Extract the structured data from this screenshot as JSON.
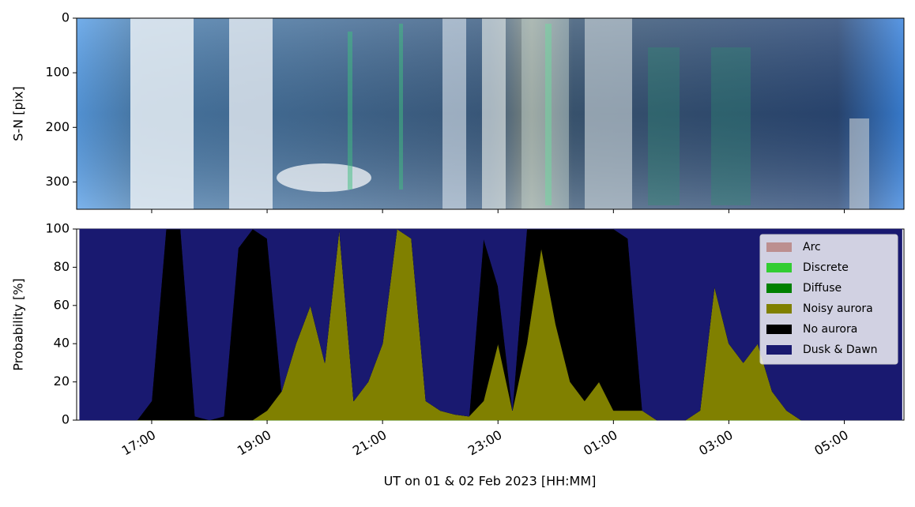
{
  "chart_data": [
    {
      "type": "image",
      "ylabel": "S-N [pix]",
      "ylim": [
        350,
        0
      ],
      "yticks": [
        0,
        100,
        200,
        300
      ]
    },
    {
      "type": "stacked_area",
      "xlabel": "UT on 01 & 02 Feb 2023 [HH:MM]",
      "ylabel": "Probability [%]",
      "xlim": [
        "2023-02-01T15:42",
        "2023-02-02T06:02"
      ],
      "xticks": [
        {
          "value": "2023-02-01T17:00",
          "label": "17:00"
        },
        {
          "value": "2023-02-01T19:00",
          "label": "19:00"
        },
        {
          "value": "2023-02-01T21:00",
          "label": "21:00"
        },
        {
          "value": "2023-02-01T23:00",
          "label": "23:00"
        },
        {
          "value": "2023-02-02T01:00",
          "label": "01:00"
        },
        {
          "value": "2023-02-02T03:00",
          "label": "03:00"
        },
        {
          "value": "2023-02-02T05:00",
          "label": "05:00"
        }
      ],
      "ylim": [
        0,
        100
      ],
      "yticks": [
        0,
        20,
        40,
        60,
        80,
        100
      ],
      "legend": "upper right",
      "x": [
        "2023-02-01T15:45",
        "2023-02-01T16:00",
        "2023-02-01T16:15",
        "2023-02-01T16:30",
        "2023-02-01T16:45",
        "2023-02-01T17:00",
        "2023-02-01T17:15",
        "2023-02-01T17:30",
        "2023-02-01T17:45",
        "2023-02-01T18:00",
        "2023-02-01T18:15",
        "2023-02-01T18:30",
        "2023-02-01T18:45",
        "2023-02-01T19:00",
        "2023-02-01T19:15",
        "2023-02-01T19:30",
        "2023-02-01T19:45",
        "2023-02-01T20:00",
        "2023-02-01T20:15",
        "2023-02-01T20:30",
        "2023-02-01T20:45",
        "2023-02-01T21:00",
        "2023-02-01T21:15",
        "2023-02-01T21:30",
        "2023-02-01T21:45",
        "2023-02-01T22:00",
        "2023-02-01T22:15",
        "2023-02-01T22:30",
        "2023-02-01T22:45",
        "2023-02-01T23:00",
        "2023-02-01T23:15",
        "2023-02-01T23:30",
        "2023-02-01T23:45",
        "2023-02-02T00:00",
        "2023-02-02T00:15",
        "2023-02-02T00:30",
        "2023-02-02T00:45",
        "2023-02-02T01:00",
        "2023-02-02T01:15",
        "2023-02-02T01:30",
        "2023-02-02T01:45",
        "2023-02-02T02:00",
        "2023-02-02T02:15",
        "2023-02-02T02:30",
        "2023-02-02T02:45",
        "2023-02-02T03:00",
        "2023-02-02T03:15",
        "2023-02-02T03:30",
        "2023-02-02T03:45",
        "2023-02-02T04:00",
        "2023-02-02T04:15",
        "2023-02-02T04:30",
        "2023-02-02T04:45",
        "2023-02-02T05:00",
        "2023-02-02T05:15",
        "2023-02-02T05:30",
        "2023-02-02T05:45",
        "2023-02-02T06:00"
      ],
      "series": [
        {
          "name": "Arc",
          "color": "#bc8f8f",
          "values": [
            0,
            0,
            0,
            0,
            0,
            0,
            0,
            0,
            0,
            0,
            0,
            0,
            0,
            0,
            0,
            0,
            0,
            0,
            0,
            0,
            0,
            0,
            0,
            0,
            0,
            0,
            0,
            0,
            0,
            0,
            0,
            0,
            0,
            0,
            0,
            0,
            0,
            0,
            0,
            0,
            0,
            0,
            0,
            0,
            0,
            0,
            0,
            0,
            0,
            0,
            0,
            0,
            0,
            0,
            0,
            0,
            0,
            0
          ]
        },
        {
          "name": "Discrete",
          "color": "#32cd32",
          "values": [
            0,
            0,
            0,
            0,
            0,
            0,
            0,
            0,
            0,
            0,
            0,
            0,
            0,
            0,
            0,
            0,
            0,
            0,
            0,
            0,
            0,
            0,
            0,
            0,
            0,
            0,
            0,
            0,
            0,
            0,
            0,
            0,
            0,
            0,
            0,
            0,
            0,
            0,
            0,
            0,
            0,
            0,
            0,
            0,
            0,
            0,
            0,
            0,
            0,
            0,
            0,
            0,
            0,
            0,
            0,
            0,
            0,
            0
          ]
        },
        {
          "name": "Diffuse",
          "color": "#008000",
          "values": [
            0,
            0,
            0,
            0,
            0,
            0,
            0,
            0,
            0,
            0,
            0,
            0,
            0,
            0,
            0,
            0,
            0,
            0,
            0,
            0,
            0,
            0,
            0,
            0,
            0,
            0,
            0,
            0,
            0,
            0,
            0,
            0,
            0,
            0,
            0,
            0,
            0,
            0,
            0,
            0,
            0,
            0,
            0,
            0,
            0,
            0,
            0,
            0,
            0,
            0,
            0,
            0,
            0,
            0,
            0,
            0,
            0,
            0
          ]
        },
        {
          "name": "Noisy aurora",
          "color": "#808000",
          "values": [
            0,
            0,
            0,
            0,
            0,
            0,
            0,
            0,
            0,
            0,
            0,
            0,
            0,
            5,
            15,
            40,
            60,
            30,
            100,
            10,
            20,
            40,
            100,
            95,
            10,
            5,
            3,
            2,
            10,
            40,
            5,
            40,
            90,
            50,
            20,
            10,
            20,
            5,
            5,
            5,
            0,
            0,
            0,
            5,
            70,
            40,
            30,
            40,
            15,
            5,
            0,
            0,
            0,
            0,
            0,
            0,
            0,
            0
          ]
        },
        {
          "name": "No aurora",
          "color": "#000000",
          "values": [
            0,
            0,
            0,
            0,
            0,
            10,
            100,
            100,
            2,
            0,
            2,
            90,
            100,
            90,
            0,
            0,
            0,
            0,
            0,
            0,
            0,
            0,
            0,
            0,
            0,
            0,
            0,
            0,
            85,
            30,
            0,
            60,
            10,
            50,
            80,
            90,
            80,
            95,
            90,
            0,
            0,
            0,
            0,
            0,
            0,
            0,
            0,
            0,
            0,
            0,
            0,
            0,
            0,
            0,
            0,
            0,
            0,
            0
          ]
        },
        {
          "name": "Dusk & Dawn",
          "color": "#191970",
          "values": [
            100,
            100,
            100,
            100,
            100,
            90,
            0,
            0,
            98,
            100,
            98,
            10,
            0,
            5,
            85,
            60,
            40,
            70,
            0,
            90,
            80,
            60,
            0,
            5,
            90,
            95,
            97,
            98,
            5,
            30,
            95,
            0,
            0,
            0,
            0,
            0,
            0,
            0,
            5,
            95,
            100,
            100,
            100,
            95,
            30,
            60,
            70,
            60,
            85,
            95,
            100,
            100,
            100,
            100,
            100,
            100,
            100,
            100
          ]
        }
      ]
    }
  ]
}
